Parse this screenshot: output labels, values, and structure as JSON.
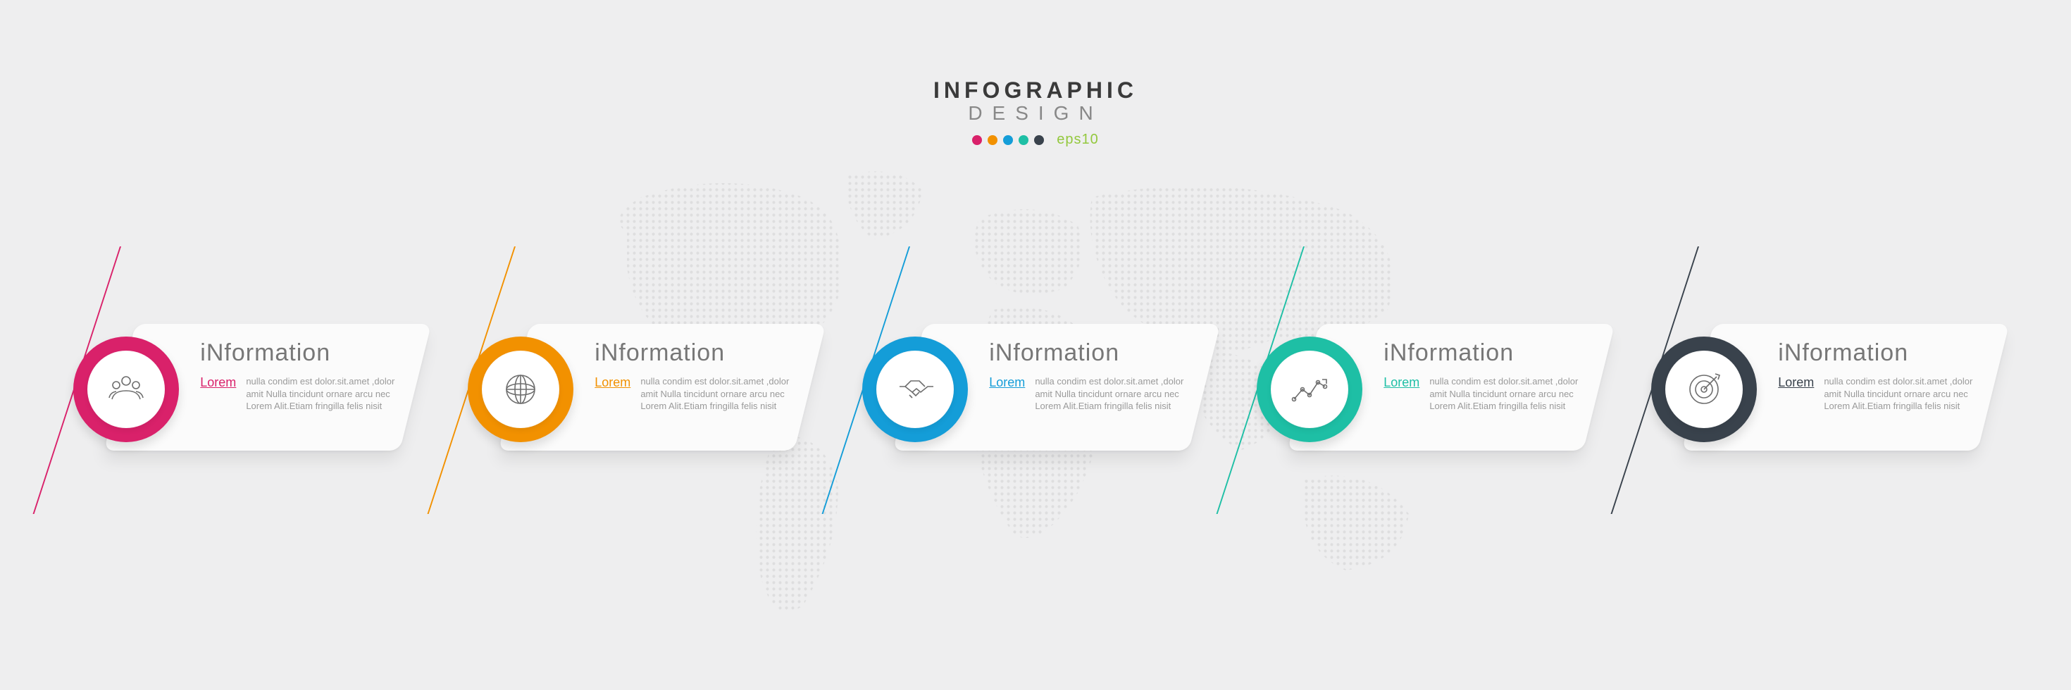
{
  "background_color": "#eeeeef",
  "header": {
    "title": "INFOGRAPHIC",
    "subtitle": "DESIGN",
    "eps": "eps10",
    "dot_colors": [
      "#d9216a",
      "#f29100",
      "#149dd8",
      "#1ebfa5",
      "#39424c"
    ]
  },
  "world_map": {
    "fill": "#b7b7b7",
    "opacity": 0.28
  },
  "card_style": {
    "background": "#fbfbfb",
    "border_radius": 14,
    "skew_deg": -14,
    "shadow": "0 14px 22px rgba(0,0,0,0.08)",
    "title_color": "#777777",
    "title_fontsize": 34,
    "desc_color": "#9a9a9a",
    "desc_fontsize": 13,
    "lorem_fontsize": 18
  },
  "ring_style": {
    "outer_diameter": 150,
    "inner_diameter": 110,
    "inner_background": "#ffffff",
    "icon_stroke": "#6d6d6d"
  },
  "steps": [
    {
      "accent": "#d9216a",
      "lorem_color": "#d9216a",
      "icon": "people",
      "title": "iNformation",
      "lorem": "Lorem",
      "desc": "nulla condim est dolor.sit.amet ,dolor amit Nulla tincidunt ornare arcu nec Lorem Alit.Etiam fringilla felis nisit"
    },
    {
      "accent": "#f29100",
      "lorem_color": "#f29100",
      "icon": "globe",
      "title": "iNformation",
      "lorem": "Lorem",
      "desc": "nulla condim est dolor.sit.amet ,dolor amit Nulla tincidunt ornare arcu nec Lorem Alit.Etiam fringilla felis nisit"
    },
    {
      "accent": "#149dd8",
      "lorem_color": "#149dd8",
      "icon": "handshake",
      "title": "iNformation",
      "lorem": "Lorem",
      "desc": "nulla condim est dolor.sit.amet ,dolor amit Nulla tincidunt ornare arcu nec Lorem Alit.Etiam fringilla felis nisit"
    },
    {
      "accent": "#1ebfa5",
      "lorem_color": "#1ebfa5",
      "icon": "chart",
      "title": "iNformation",
      "lorem": "Lorem",
      "desc": "nulla condim est dolor.sit.amet ,dolor amit Nulla tincidunt ornare arcu nec Lorem Alit.Etiam fringilla felis nisit"
    },
    {
      "accent": "#39424c",
      "lorem_color": "#39424c",
      "icon": "target",
      "title": "iNformation",
      "lorem": "Lorem",
      "desc": "nulla condim est dolor.sit.amet ,dolor amit Nulla tincidunt ornare arcu nec Lorem Alit.Etiam fringilla felis nisit"
    }
  ]
}
